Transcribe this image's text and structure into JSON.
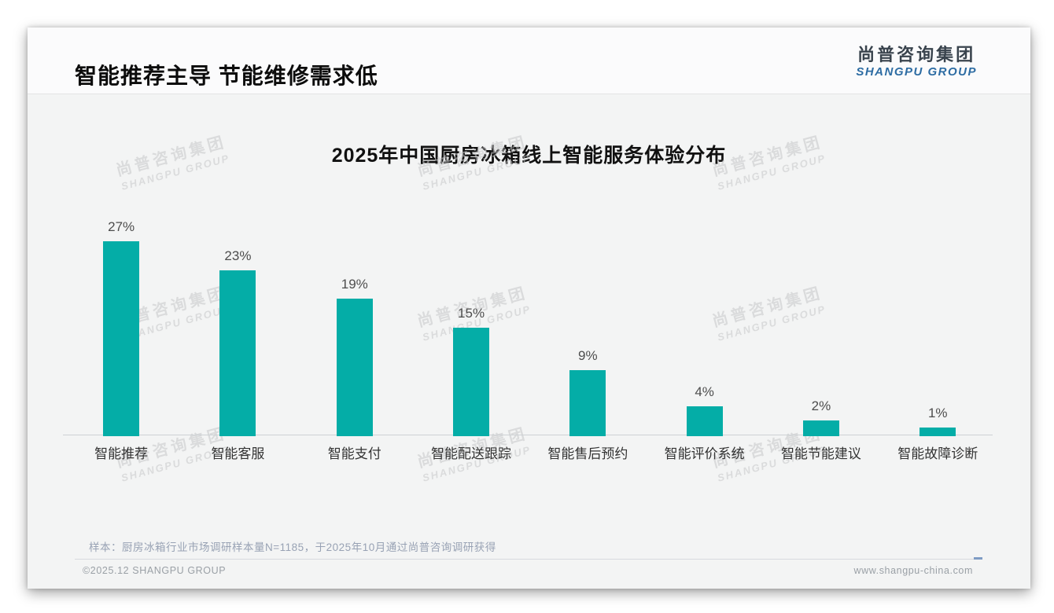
{
  "slide": {
    "header": {
      "title": "智能推荐主导 节能维修需求低",
      "logo_cn": "尚普咨询集团",
      "logo_en": "SHANGPU GROUP"
    },
    "note": "样本：厨房冰箱行业市场调研样本量N=1185，于2025年10月通过尚普咨询调研获得",
    "footer": {
      "copyright": "©2025.12 SHANGPU GROUP",
      "website": "www.shangpu-china.com"
    },
    "watermark": {
      "cn": "尚普咨询集团",
      "en": "SHANGPU GROUP"
    }
  },
  "colors": {
    "bar": "#04ada7",
    "logo_cn": "#39434d",
    "logo_en": "#2d6ca3",
    "note": "#98a2b4",
    "footer": "#9aa0a6"
  },
  "chart_data": {
    "type": "bar",
    "title": "2025年中国厨房冰箱线上智能服务体验分布",
    "categories": [
      "智能推荐",
      "智能客服",
      "智能支付",
      "智能配送跟踪",
      "智能售后预约",
      "智能评价系统",
      "智能节能建议",
      "智能故障诊断"
    ],
    "values": [
      27,
      23,
      19,
      15,
      9,
      4,
      2,
      1
    ],
    "unit": "%",
    "bar_color": "#04ada7",
    "ylim": [
      0,
      28
    ],
    "grid": false,
    "legend": false,
    "data_labels": true,
    "xlabel": "",
    "ylabel": ""
  }
}
